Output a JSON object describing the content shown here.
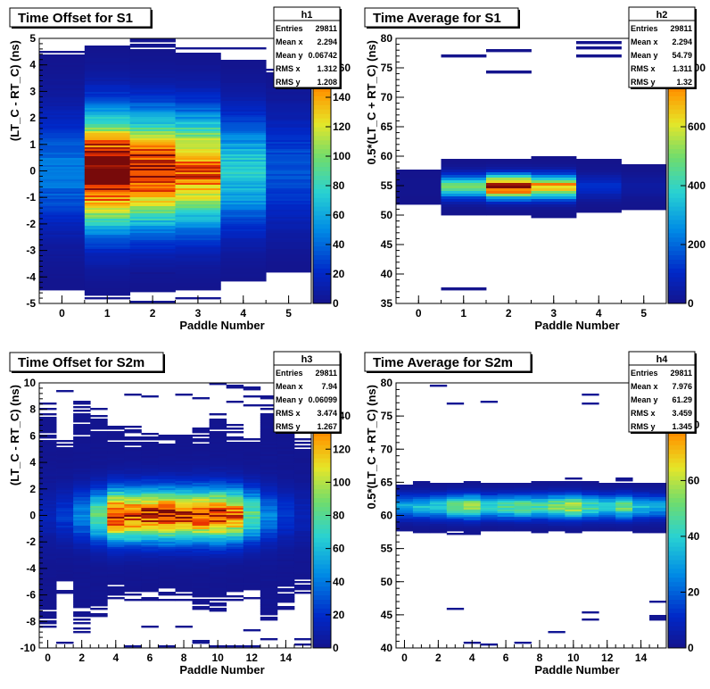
{
  "chart_data": [
    {
      "type": "heatmap",
      "title": "Time Offset for S1",
      "xlabel": "Paddle Number",
      "ylabel": "(LT_C - RT_C) (ns)",
      "xlim": [
        -0.5,
        5.5
      ],
      "ylim": [
        -5,
        5
      ],
      "xticks": [
        "0",
        "1",
        "2",
        "3",
        "4",
        "5"
      ],
      "yticks": [
        "-5",
        "-4",
        "-3",
        "-2",
        "-1",
        "0",
        "1",
        "2",
        "3",
        "4",
        "5"
      ],
      "zlim": [
        0,
        180
      ],
      "zticks": [
        "0",
        "20",
        "40",
        "60",
        "80",
        "100",
        "120",
        "140",
        "160"
      ],
      "profile": {
        "peaks": [
          40,
          190,
          170,
          150,
          70,
          30
        ],
        "center": 0,
        "sigma": 1.4,
        "base": 4
      },
      "stats": {
        "name": "h1",
        "rows": [
          {
            "label": "Entries",
            "value": "29811"
          },
          {
            "label": "Mean x",
            "value": "2.294"
          },
          {
            "label": "Mean y",
            "value": "0.06742"
          },
          {
            "label": "RMS x",
            "value": "1.312"
          },
          {
            "label": "RMS y",
            "value": "1.208"
          }
        ]
      }
    },
    {
      "type": "heatmap",
      "title": "Time Average for S1",
      "xlabel": "Paddle Number",
      "ylabel": "0.5*(LT_C + RT_C) (ns)",
      "xlim": [
        -0.5,
        5.5
      ],
      "ylim": [
        35,
        80
      ],
      "xticks": [
        "0",
        "1",
        "2",
        "3",
        "4",
        "5"
      ],
      "yticks": [
        "35",
        "40",
        "45",
        "50",
        "55",
        "60",
        "65",
        "70",
        "75",
        "80"
      ],
      "zlim": [
        0,
        900
      ],
      "zticks": [
        "0",
        "200",
        "400",
        "600",
        "800"
      ],
      "profile": {
        "peaks": [
          5,
          450,
          880,
          700,
          120,
          40
        ],
        "center": 54.8,
        "sigma": 1.3,
        "base": 0.5
      },
      "stats": {
        "name": "h2",
        "rows": [
          {
            "label": "Entries",
            "value": "29811"
          },
          {
            "label": "Mean x",
            "value": "2.294"
          },
          {
            "label": "Mean y",
            "value": "54.79"
          },
          {
            "label": "RMS x",
            "value": "1.311"
          },
          {
            "label": "RMS y",
            "value": "1.32"
          }
        ]
      }
    },
    {
      "type": "heatmap",
      "title": "Time Offset for S2m",
      "xlabel": "Paddle Number",
      "ylabel": "(LT_C - RT_C) (ns)",
      "xlim": [
        -0.5,
        15.5
      ],
      "ylim": [
        -10,
        10
      ],
      "xticks": [
        "0",
        "2",
        "4",
        "6",
        "8",
        "10",
        "12",
        "14"
      ],
      "xtick_values": [
        0,
        2,
        4,
        6,
        8,
        10,
        12,
        14
      ],
      "yticks": [
        "-10",
        "-8",
        "-6",
        "-4",
        "-2",
        "0",
        "2",
        "4",
        "6",
        "8",
        "10"
      ],
      "zlim": [
        0,
        160
      ],
      "zticks": [
        "0",
        "20",
        "40",
        "60",
        "80",
        "100",
        "120",
        "140"
      ],
      "profile": {
        "peaks": [
          10,
          20,
          40,
          80,
          150,
          140,
          145,
          150,
          140,
          145,
          150,
          130,
          80,
          40,
          20,
          10
        ],
        "center": 0,
        "sigma": 1.3,
        "base": 3
      },
      "stats": {
        "name": "h3",
        "rows": [
          {
            "label": "Entries",
            "value": "29811"
          },
          {
            "label": "Mean x",
            "value": "7.94"
          },
          {
            "label": "Mean y",
            "value": "0.06099"
          },
          {
            "label": "RMS x",
            "value": "3.474"
          },
          {
            "label": "RMS y",
            "value": "1.267"
          }
        ]
      }
    },
    {
      "type": "heatmap",
      "title": "Time Average for S2m",
      "xlabel": "Paddle Number",
      "ylabel": "0.5*(LT_C + RT_C) (ns)",
      "xlim": [
        -0.5,
        15.5
      ],
      "ylim": [
        40,
        80
      ],
      "xticks": [
        "0",
        "2",
        "4",
        "6",
        "8",
        "10",
        "12",
        "14"
      ],
      "xtick_values": [
        0,
        2,
        4,
        6,
        8,
        10,
        12,
        14
      ],
      "yticks": [
        "40",
        "45",
        "50",
        "55",
        "60",
        "65",
        "70",
        "75",
        "80"
      ],
      "zlim": [
        0,
        95
      ],
      "zticks": [
        "0",
        "20",
        "40",
        "60",
        "80"
      ],
      "profile": {
        "peaks": [
          30,
          35,
          40,
          50,
          60,
          40,
          45,
          50,
          45,
          55,
          60,
          45,
          40,
          50,
          35,
          30
        ],
        "center": 61.3,
        "sigma": 1.2,
        "base": 0.6
      },
      "stats": {
        "name": "h4",
        "rows": [
          {
            "label": "Entries",
            "value": "29811"
          },
          {
            "label": "Mean x",
            "value": "7.976"
          },
          {
            "label": "Mean y",
            "value": "61.29"
          },
          {
            "label": "RMS x",
            "value": "3.459"
          },
          {
            "label": "RMS y",
            "value": "1.345"
          }
        ]
      }
    }
  ]
}
